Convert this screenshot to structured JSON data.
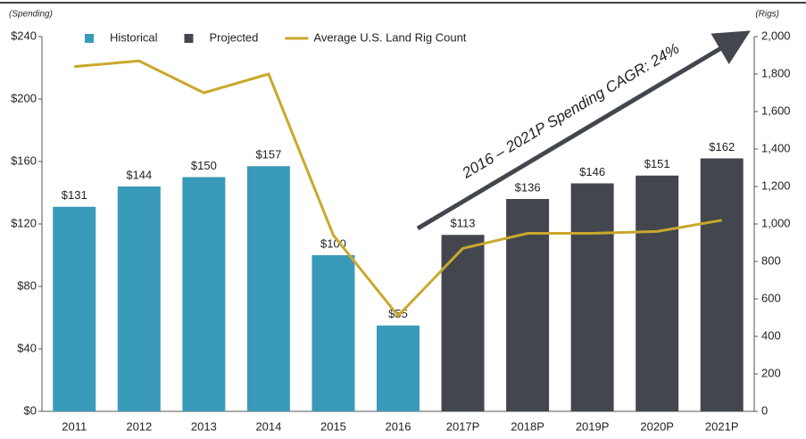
{
  "chart_data": {
    "type": "bar",
    "y_axis_label": "(Spending)",
    "y2_axis_label": "(Rigs)",
    "annotation": "2016 – 2021P Spending CAGR:  24%",
    "categories": [
      "2011",
      "2012",
      "2013",
      "2014",
      "2015",
      "2016",
      "2017P",
      "2018P",
      "2019P",
      "2020P",
      "2021P"
    ],
    "series": [
      {
        "name": "Historical",
        "type": "bar",
        "color": "#3a9aba",
        "values": [
          131,
          144,
          150,
          157,
          100,
          55,
          null,
          null,
          null,
          null,
          null
        ],
        "value_labels": [
          "$131",
          "$144",
          "$150",
          "$157",
          "$100",
          "$55",
          null,
          null,
          null,
          null,
          null
        ]
      },
      {
        "name": "Projected",
        "type": "bar",
        "color": "#43474d",
        "values": [
          null,
          null,
          null,
          null,
          null,
          null,
          113,
          136,
          146,
          151,
          162
        ],
        "value_labels": [
          null,
          null,
          null,
          null,
          null,
          null,
          "$113",
          "$136",
          "$146",
          "$151",
          "$162"
        ]
      },
      {
        "name": "Average U.S. Land Rig Count",
        "type": "line",
        "axis": "y2",
        "color": "#c9a82c",
        "values": [
          1840,
          1870,
          1700,
          1800,
          940,
          510,
          870,
          950,
          950,
          960,
          1020
        ]
      }
    ],
    "ylim": [
      0,
      240
    ],
    "yticks": [
      {
        "value": 0,
        "label": "$0"
      },
      {
        "value": 40,
        "label": "$40"
      },
      {
        "value": 80,
        "label": "$80"
      },
      {
        "value": 120,
        "label": "$120"
      },
      {
        "value": 160,
        "label": "$160"
      },
      {
        "value": 200,
        "label": "$200"
      },
      {
        "value": 240,
        "label": "$240"
      }
    ],
    "y2lim": [
      0,
      2000
    ],
    "y2ticks": [
      0,
      200,
      400,
      600,
      800,
      {
        "value": 1000,
        "label": "1,000"
      },
      {
        "value": 1200,
        "label": "1,200"
      },
      {
        "value": 1400,
        "label": "1,400"
      },
      {
        "value": 1600,
        "label": "1,600"
      },
      {
        "value": 1800,
        "label": "1,800"
      },
      {
        "value": 2000,
        "label": "2,000"
      }
    ],
    "legend": "top-left",
    "grid": false
  }
}
